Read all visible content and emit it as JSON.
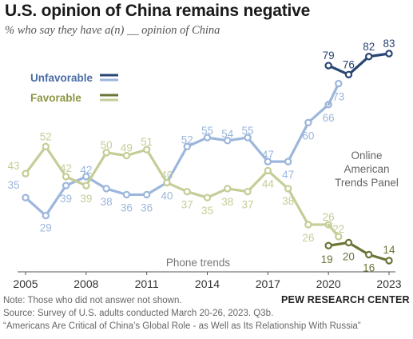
{
  "header": {
    "title": "U.S. opinion of China remains negative",
    "subtitle": "% who say they have a(n) __ opinion of China"
  },
  "chart_data": {
    "type": "line",
    "xlim": [
      2005,
      2023
    ],
    "ylim": [
      10,
      88
    ],
    "x_ticks": [
      "2005",
      "2008",
      "2011",
      "2014",
      "2017",
      "2020",
      "2023"
    ],
    "grid": false,
    "legend_position": "top-left",
    "series": [
      {
        "name": "Unfavorable",
        "segment": "phone",
        "color": "#9cb6dc",
        "x": [
          2005,
          2006,
          2007,
          2008,
          2009,
          2010,
          2011,
          2012,
          2013,
          2014,
          2015,
          2016,
          2017,
          2018,
          2019,
          2020
        ],
        "values": [
          35,
          29,
          39,
          42,
          38,
          36,
          36,
          40,
          52,
          55,
          54,
          55,
          47,
          47,
          60,
          66
        ]
      },
      {
        "name": "Unfavorable",
        "segment": "phone-2020-spring",
        "color": "#9cb6dc",
        "x": [
          2020,
          2020.5
        ],
        "values": [
          66,
          73
        ]
      },
      {
        "name": "Unfavorable",
        "segment": "online",
        "color": "#2a4574",
        "x": [
          2020,
          2021,
          2022,
          2023
        ],
        "values": [
          79,
          76,
          82,
          83
        ]
      },
      {
        "name": "Favorable",
        "segment": "phone",
        "color": "#c5cd97",
        "x": [
          2005,
          2006,
          2007,
          2008,
          2009,
          2010,
          2011,
          2012,
          2013,
          2014,
          2015,
          2016,
          2017,
          2018,
          2019,
          2020
        ],
        "values": [
          43,
          52,
          42,
          39,
          50,
          49,
          51,
          40,
          37,
          35,
          38,
          37,
          44,
          38,
          26,
          26
        ]
      },
      {
        "name": "Favorable",
        "segment": "phone-2020-spring",
        "color": "#c5cd97",
        "x": [
          2020,
          2020.5
        ],
        "values": [
          26,
          22
        ]
      },
      {
        "name": "Favorable",
        "segment": "online",
        "color": "#6d7437",
        "x": [
          2020,
          2021,
          2022,
          2023
        ],
        "values": [
          19,
          20,
          16,
          14
        ]
      }
    ],
    "legend": [
      {
        "label": "Unfavorable",
        "color": "#4a6ba6",
        "swatch_colors": [
          "#2a4574",
          "#9cb6dc"
        ]
      },
      {
        "label": "Favorable",
        "color": "#8d9545",
        "swatch_colors": [
          "#6d7437",
          "#c5cd97"
        ]
      }
    ],
    "annotations": {
      "phone": "Phone trends",
      "online": [
        "Online",
        "American",
        "Trends Panel"
      ]
    }
  },
  "footer": {
    "note": "Note: Those who did not answer not shown.",
    "source": "Source: Survey of U.S. adults conducted March 20-26, 2023. Q3b.",
    "report": "“Americans Are Critical of China’s Global Role - as Well as Its Relationship With Russia”",
    "org": "PEW RESEARCH CENTER"
  }
}
